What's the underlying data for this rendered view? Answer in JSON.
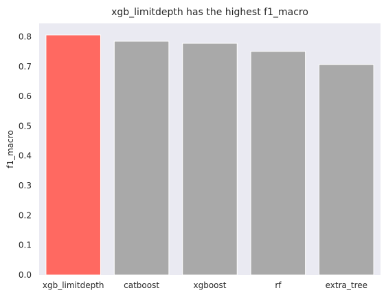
{
  "chart_data": {
    "type": "bar",
    "title": "xgb_limitdepth has the highest f1_macro",
    "xlabel": "",
    "ylabel": "f1_macro",
    "categories": [
      "xgb_limitdepth",
      "catboost",
      "xgboost",
      "rf",
      "extra_tree"
    ],
    "values": [
      0.806,
      0.785,
      0.778,
      0.751,
      0.707
    ],
    "highlight_index": 0,
    "ylim": [
      0,
      0.845
    ],
    "yticks": [
      "0.0",
      "0.1",
      "0.2",
      "0.3",
      "0.4",
      "0.5",
      "0.6",
      "0.7",
      "0.8"
    ],
    "grid": false,
    "legend": "none",
    "colors": {
      "highlight": "#ff6961",
      "bar": "#a9a9a9",
      "plot_background": "#eaeaf2",
      "text": "#262626"
    }
  }
}
